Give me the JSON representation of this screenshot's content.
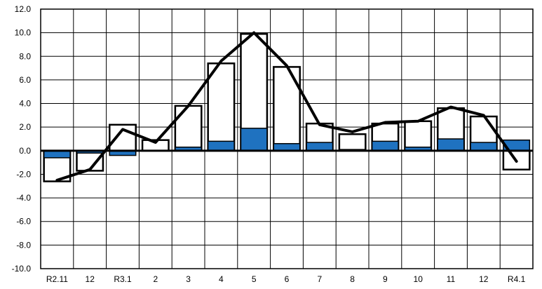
{
  "chart_data": {
    "type": "bar",
    "categories": [
      "R2.11",
      "12",
      "R3.1",
      "2",
      "3",
      "4",
      "5",
      "6",
      "7",
      "8",
      "9",
      "10",
      "11",
      "12",
      "R4.1"
    ],
    "ylim": [
      -10.0,
      12.0
    ],
    "yticks": [
      "12.0",
      "10.0",
      "8.0",
      "6.0",
      "4.0",
      "2.0",
      "0.0",
      "-2.0",
      "-4.0",
      "-6.0",
      "-8.0",
      "-10.0"
    ],
    "grid": true,
    "legend": "none",
    "series": [
      {
        "type": "bar",
        "color": "#ffffff",
        "stroke": "#000000",
        "values": [
          -2.6,
          -1.7,
          2.2,
          0.9,
          3.8,
          7.4,
          9.9,
          7.1,
          2.3,
          1.4,
          2.3,
          2.5,
          3.6,
          2.9,
          -1.6
        ]
      },
      {
        "type": "bar",
        "color": "#1f72c0",
        "values": [
          -0.6,
          -0.2,
          -0.4,
          0.0,
          0.3,
          0.8,
          1.9,
          0.6,
          0.7,
          0.1,
          0.8,
          0.3,
          1.0,
          0.7,
          0.9
        ]
      },
      {
        "type": "line",
        "color": "#000000",
        "values": [
          -2.5,
          -1.6,
          1.8,
          0.7,
          3.8,
          7.6,
          10.0,
          7.2,
          2.2,
          1.6,
          2.4,
          2.5,
          3.7,
          3.0,
          -0.9
        ]
      }
    ]
  }
}
